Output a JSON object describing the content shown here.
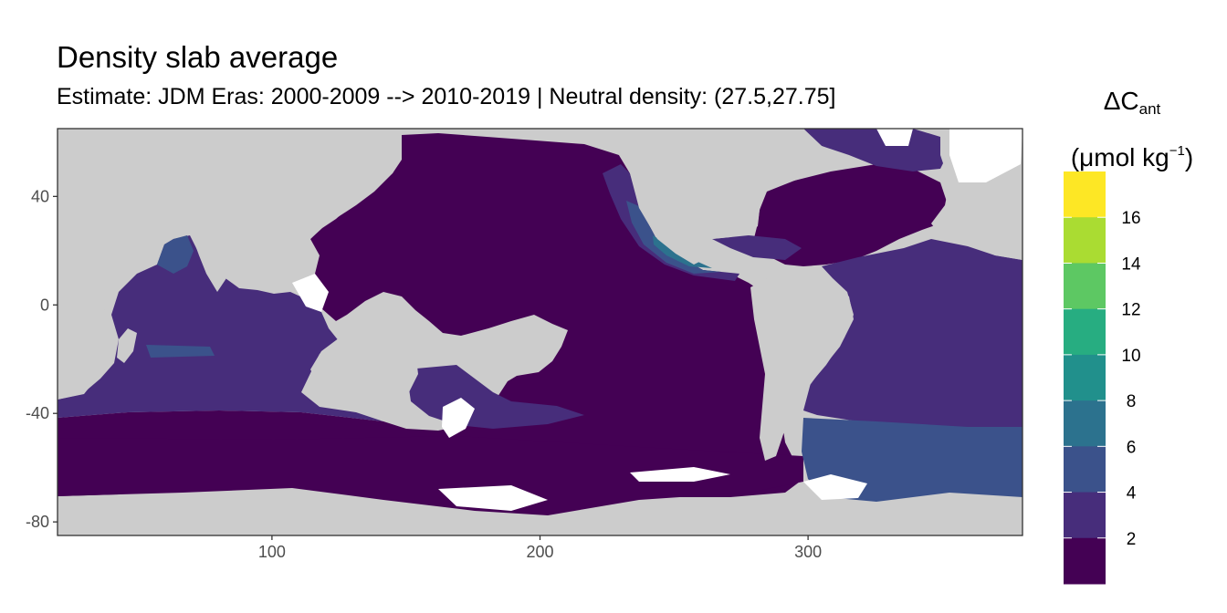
{
  "title": "Density slab average",
  "subtitle": "Estimate: JDM Eras: 2000-2009 --> 2010-2019 | Neutral density: (27.5,27.75]",
  "legend": {
    "symbol": "ΔC",
    "subscript": "ant",
    "unit_open": "(μmol kg",
    "unit_exp": "−1",
    "unit_close": ")",
    "bins": [
      {
        "label": "2",
        "color": "#440154"
      },
      {
        "label": "4",
        "color": "#472D7B"
      },
      {
        "label": "6",
        "color": "#3B528B"
      },
      {
        "label": "8",
        "color": "#2C728E"
      },
      {
        "label": "10",
        "color": "#21908C"
      },
      {
        "label": "12",
        "color": "#27AD81"
      },
      {
        "label": "14",
        "color": "#5DC863"
      },
      {
        "label": "16",
        "color": "#AADC32"
      },
      {
        "label": "",
        "color": "#FDE725"
      }
    ]
  },
  "chart_data": {
    "type": "map",
    "x_axis": {
      "ticks": [
        100,
        200,
        300
      ],
      "range": [
        20,
        380
      ]
    },
    "y_axis": {
      "ticks": [
        40,
        0,
        -40,
        -80
      ],
      "range": [
        -85,
        65
      ]
    },
    "colors": {
      "land": "#cccccc",
      "no_data": "#ffffff",
      "frame": "#333333"
    }
  }
}
